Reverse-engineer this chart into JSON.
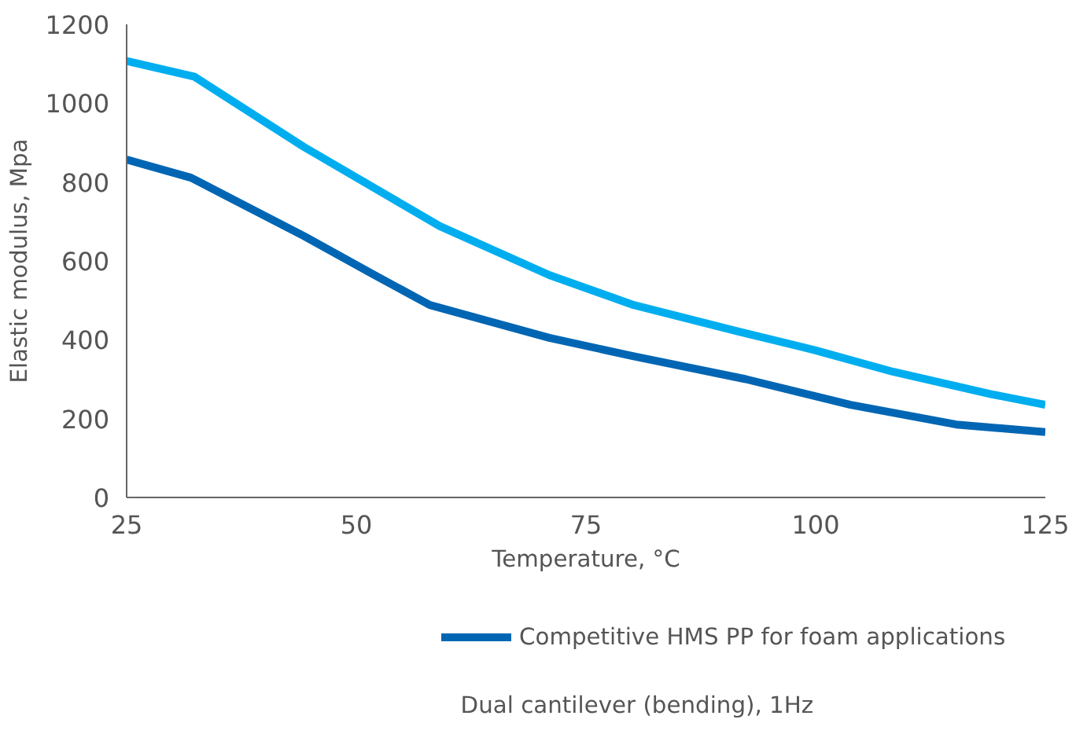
{
  "chart_data": {
    "type": "line",
    "xlabel": "Temperature, °C",
    "ylabel": "Elastic modulus, Mpa",
    "xlim": [
      25,
      125
    ],
    "xticks": [
      25,
      50,
      75,
      100,
      125
    ],
    "ylim": [
      0,
      1200
    ],
    "yticks": [
      0,
      200,
      400,
      600,
      800,
      1000,
      1200
    ],
    "grid": false,
    "legend": "bottom",
    "marker": "none",
    "line_style": "solid",
    "annotations": [
      "Dual cantilever (bending), 1Hz"
    ],
    "series": [
      {
        "color": "#00aeef",
        "x": [
          25,
          32.4,
          44.3,
          59.1,
          71,
          80.2,
          91.6,
          100,
          108.4,
          119.1,
          125
        ],
        "values": [
          1107,
          1067,
          889,
          688,
          564,
          488,
          421,
          373,
          319,
          262,
          235
        ]
      },
      {
        "name": "Competitive HMS PP for foam applications",
        "color": "#0066b3",
        "x": [
          25,
          32,
          44.3,
          52,
          58,
          71,
          80.2,
          92.4,
          103.8,
          115.3,
          125
        ],
        "values": [
          857,
          811,
          663,
          564,
          488,
          405,
          358,
          300,
          235,
          185,
          166
        ]
      }
    ]
  }
}
